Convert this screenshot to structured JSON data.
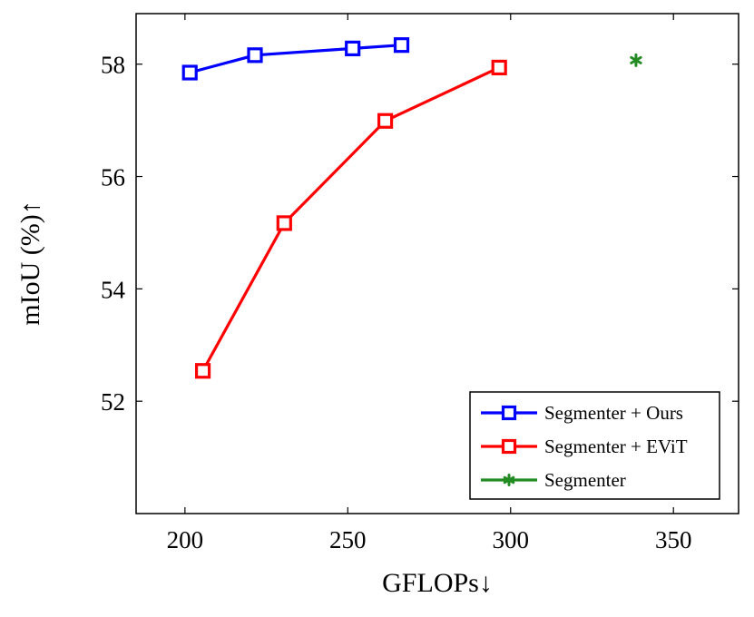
{
  "chart_data": {
    "type": "line",
    "title": "",
    "xlabel": "GFLOPs↓",
    "ylabel": "mIoU (%)↑",
    "xlim": [
      185,
      370
    ],
    "ylim": [
      50,
      58.9
    ],
    "xticks": [
      200,
      250,
      300,
      350
    ],
    "yticks": [
      52,
      54,
      56,
      58
    ],
    "grid": false,
    "legend_position": "bottom-right",
    "series": [
      {
        "name": "Segmenter + Ours",
        "color": "#0000ff",
        "marker": "square",
        "x": [
          201.5,
          221.5,
          251.5,
          266.5
        ],
        "y": [
          57.85,
          58.16,
          58.28,
          58.34
        ]
      },
      {
        "name": "Segmenter + EViT",
        "color": "#ff0000",
        "marker": "square",
        "x": [
          205.5,
          230.5,
          261.5,
          296.5
        ],
        "y": [
          52.54,
          55.17,
          56.99,
          57.94
        ]
      },
      {
        "name": "Segmenter",
        "color": "#228b22",
        "marker": "asterisk",
        "x": [
          338.5
        ],
        "y": [
          58.07
        ]
      }
    ]
  }
}
